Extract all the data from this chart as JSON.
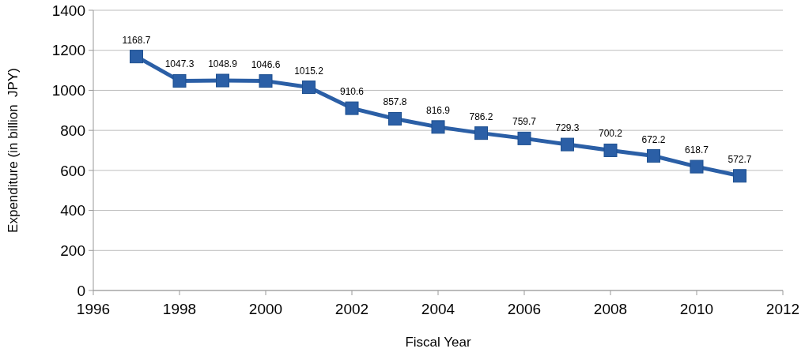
{
  "chart_data": {
    "type": "line",
    "xlabel": "Fiscal Year",
    "ylabel": "Expenditure (in billion  JPY)",
    "x": [
      1997,
      1998,
      1999,
      2000,
      2001,
      2002,
      2003,
      2004,
      2005,
      2006,
      2007,
      2008,
      2009,
      2010,
      2011
    ],
    "series": [
      {
        "color": "#2b5fa6",
        "values": [
          1168.7,
          1047.3,
          1048.9,
          1046.6,
          1015.2,
          910.6,
          857.8,
          816.9,
          786.2,
          759.7,
          729.3,
          700.2,
          672.2,
          618.7,
          572.7
        ]
      }
    ],
    "xlim": [
      1996,
      2012
    ],
    "xticks": [
      1996,
      1998,
      2000,
      2002,
      2004,
      2006,
      2008,
      2010,
      2012
    ],
    "ylim": [
      0,
      1400
    ],
    "yticks": [
      0,
      200,
      400,
      600,
      800,
      1000,
      1200,
      1400
    ],
    "grid": "y",
    "marker": "square",
    "line_style": "solid",
    "data_labels": true
  }
}
